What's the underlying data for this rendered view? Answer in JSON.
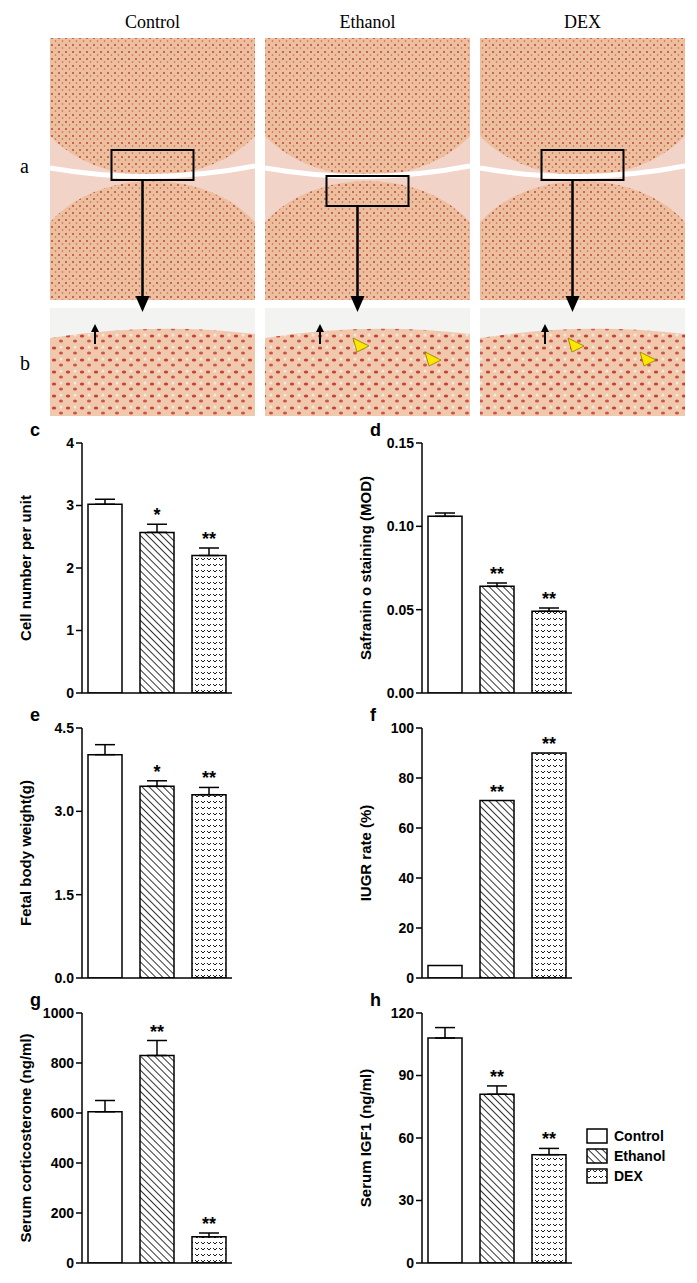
{
  "figure": {
    "columns": [
      "Control",
      "Ethanol",
      "DEX"
    ],
    "rows": [
      "a",
      "b"
    ]
  },
  "chart_data": [
    {
      "type": "bar",
      "panel": "c",
      "y_label": "Cell number per unit",
      "categories": [
        null
      ],
      "ylim": [
        0,
        4
      ],
      "yticks": [
        0,
        1,
        2,
        3,
        4
      ],
      "grid": false,
      "tick_labels": "y",
      "series": [
        {
          "name": "Control",
          "color": "#000000",
          "values": [
            3.02
          ],
          "errors": [
            0.08
          ]
        },
        {
          "name": "Ethanol",
          "color": "#000000",
          "values": [
            2.57
          ],
          "errors": [
            0.13
          ],
          "annotation": "*"
        },
        {
          "name": "DEX",
          "color": "#000000",
          "values": [
            2.2
          ],
          "errors": [
            0.12
          ],
          "annotation": "**"
        }
      ]
    },
    {
      "type": "bar",
      "panel": "d",
      "y_label": "Safranin o staining (MOD)",
      "categories": [
        null
      ],
      "ylim": [
        0,
        0.15
      ],
      "yticks": [
        {
          "value": 0,
          "label": "0.00"
        },
        0.05,
        {
          "value": 0.1,
          "label": "0.10"
        },
        0.15
      ],
      "grid": false,
      "tick_labels": "y",
      "series": [
        {
          "name": "Control",
          "color": "#000000",
          "values": [
            0.106
          ],
          "errors": [
            0.002
          ]
        },
        {
          "name": "Ethanol",
          "color": "#000000",
          "values": [
            0.064
          ],
          "errors": [
            0.002
          ],
          "annotation": "**"
        },
        {
          "name": "DEX",
          "color": "#000000",
          "values": [
            0.049
          ],
          "errors": [
            0.002
          ],
          "annotation": "**"
        }
      ]
    },
    {
      "type": "bar",
      "panel": "e",
      "y_label": "Fetal body weight(g)",
      "categories": [
        null
      ],
      "ylim": [
        0,
        4.5
      ],
      "yticks": [
        {
          "value": 0,
          "label": "0.0"
        },
        1.5,
        {
          "value": 3,
          "label": "3.0"
        },
        4.5
      ],
      "grid": false,
      "tick_labels": "y",
      "series": [
        {
          "name": "Control",
          "color": "#000000",
          "values": [
            4.02
          ],
          "errors": [
            0.18
          ]
        },
        {
          "name": "Ethanol",
          "color": "#000000",
          "values": [
            3.45
          ],
          "errors": [
            0.1
          ],
          "annotation": "*"
        },
        {
          "name": "DEX",
          "color": "#000000",
          "values": [
            3.3
          ],
          "errors": [
            0.13
          ],
          "annotation": "**"
        }
      ]
    },
    {
      "type": "bar",
      "panel": "f",
      "y_label": "IUGR rate (%)",
      "categories": [
        null
      ],
      "ylim": [
        0,
        100
      ],
      "yticks": [
        0,
        20,
        40,
        60,
        80,
        100
      ],
      "grid": false,
      "tick_labels": "y",
      "series": [
        {
          "name": "Control",
          "color": "#000000",
          "values": [
            5
          ]
        },
        {
          "name": "Ethanol",
          "color": "#000000",
          "values": [
            71
          ],
          "annotation": "**"
        },
        {
          "name": "DEX",
          "color": "#000000",
          "values": [
            90
          ],
          "annotation": "**"
        }
      ]
    },
    {
      "type": "bar",
      "panel": "g",
      "y_label": "Serum corticosterone (ng/ml)",
      "categories": [
        null
      ],
      "ylim": [
        0,
        1000
      ],
      "yticks": [
        0,
        200,
        400,
        600,
        800,
        1000
      ],
      "grid": false,
      "tick_labels": "y",
      "series": [
        {
          "name": "Control",
          "color": "#000000",
          "values": [
            605
          ],
          "errors": [
            45
          ]
        },
        {
          "name": "Ethanol",
          "color": "#000000",
          "values": [
            830
          ],
          "errors": [
            60
          ],
          "annotation": "**"
        },
        {
          "name": "DEX",
          "color": "#000000",
          "values": [
            105
          ],
          "errors": [
            15
          ],
          "annotation": "**"
        }
      ]
    },
    {
      "type": "bar",
      "panel": "h",
      "y_label": "Serum IGF1 (ng/ml)",
      "categories": [
        null
      ],
      "ylim": [
        0,
        120
      ],
      "yticks": [
        0,
        30,
        60,
        90,
        120
      ],
      "grid": false,
      "tick_labels": "y",
      "legend": "right",
      "series": [
        {
          "name": "Control",
          "color": "#000000",
          "values": [
            108
          ],
          "errors": [
            5
          ]
        },
        {
          "name": "Ethanol",
          "color": "#000000",
          "values": [
            81
          ],
          "errors": [
            4
          ],
          "annotation": "**"
        },
        {
          "name": "DEX",
          "color": "#000000",
          "values": [
            52
          ],
          "errors": [
            3
          ],
          "annotation": "**"
        }
      ]
    }
  ]
}
